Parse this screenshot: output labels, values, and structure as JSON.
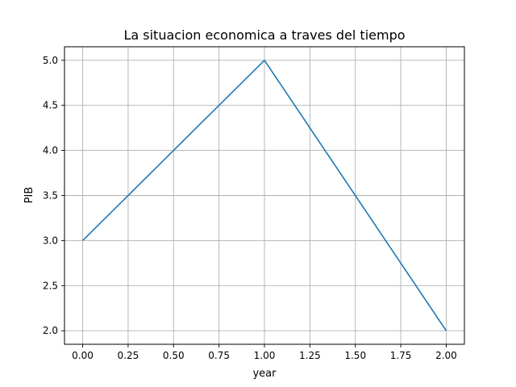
{
  "chart_data": {
    "type": "line",
    "title": "La situacion economica a traves del tiempo",
    "xlabel": "year",
    "ylabel": "PIB",
    "x": [
      0,
      1,
      2
    ],
    "series": [
      {
        "values": [
          3,
          5,
          2
        ],
        "color": "#1f77b4"
      }
    ],
    "xlim": [
      -0.1,
      2.1
    ],
    "ylim": [
      1.85,
      5.15
    ],
    "xticks": [
      0,
      0.25,
      0.5,
      0.75,
      1,
      1.25,
      1.5,
      1.75,
      2
    ],
    "xtick_labels": [
      "0.00",
      "0.25",
      "0.50",
      "0.75",
      "1.00",
      "1.25",
      "1.50",
      "1.75",
      "2.00"
    ],
    "yticks": [
      2,
      2.5,
      3,
      3.5,
      4,
      4.5,
      5
    ],
    "ytick_labels": [
      "2.0",
      "2.5",
      "3.0",
      "3.5",
      "4.0",
      "4.5",
      "5.0"
    ],
    "grid": true,
    "legend": "none"
  }
}
